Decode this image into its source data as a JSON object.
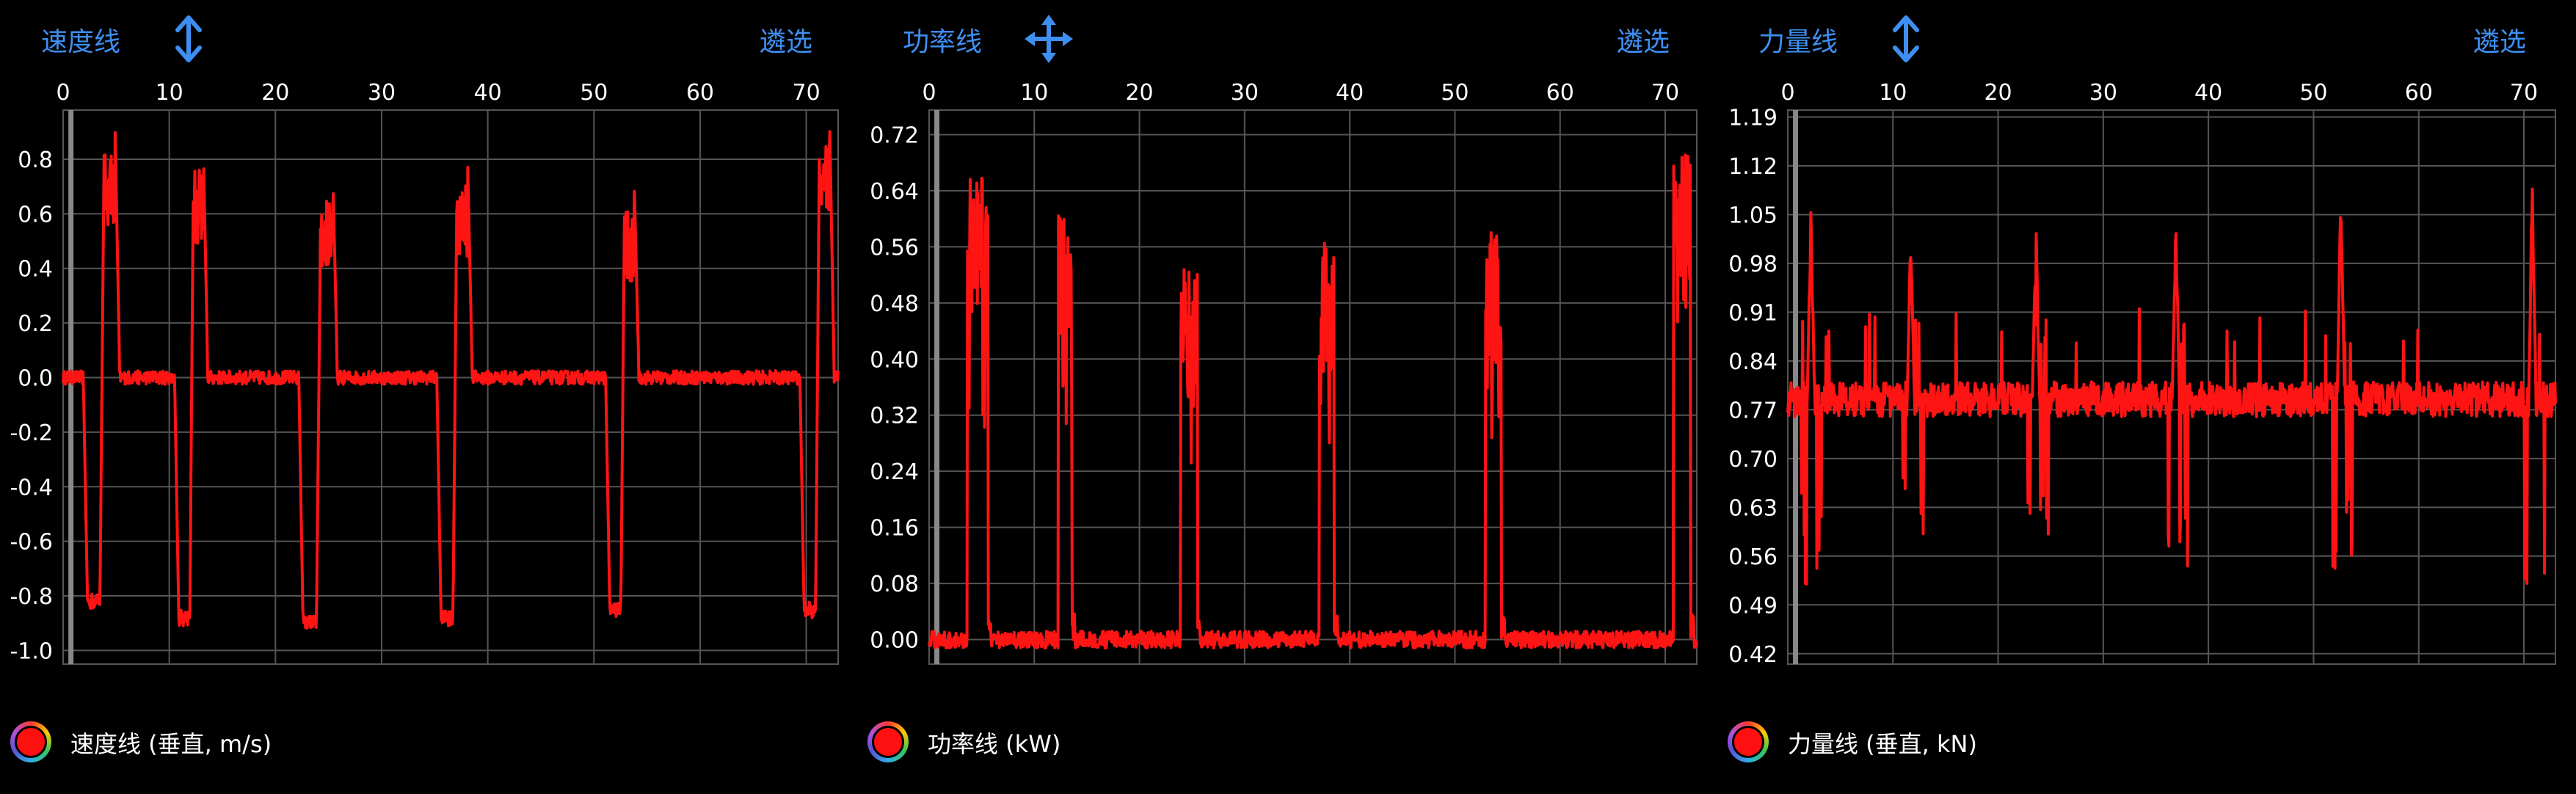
{
  "colors": {
    "accent": "#3d8ff2",
    "series": "#ff1414",
    "grid": "#555555"
  },
  "panels": [
    {
      "title": "速度线",
      "filter": "遴选",
      "icon": "vertical-arrows-icon",
      "legend": "速度线 (垂直, m/s)"
    },
    {
      "title": "功率线",
      "filter": "遴选",
      "icon": "move-arrows-icon",
      "legend": "功率线 (kW)"
    },
    {
      "title": "力量线",
      "filter": "遴选",
      "icon": "vertical-arrows-icon",
      "legend": "力量线 (垂直, kN)"
    }
  ],
  "chart_data": [
    {
      "type": "line",
      "series": [
        {
          "name": "速度线 (垂直, m/s)"
        }
      ],
      "xticks": [
        "0",
        "10",
        "20",
        "30",
        "40",
        "50",
        "60",
        "70"
      ],
      "xlim": [
        0,
        73
      ],
      "yticks": [
        "0.8",
        "0.6",
        "0.4",
        "0.2",
        "0.0",
        "-0.2",
        "-0.4",
        "-0.6",
        "-0.8",
        "-1.0"
      ],
      "ylim": [
        -1.05,
        0.98
      ],
      "baseline": 0.0,
      "noise": 0.025,
      "events": [
        {
          "x": 2.3,
          "w": 2.6,
          "low": -0.82,
          "high": 0.82
        },
        {
          "x": 10.9,
          "w": 2.3,
          "low": -0.88,
          "high": 0.77
        },
        {
          "x": 22.6,
          "w": 2.8,
          "low": -0.9,
          "high": 0.67
        },
        {
          "x": 35.6,
          "w": 2.5,
          "low": -0.88,
          "high": 0.72
        },
        {
          "x": 51.5,
          "w": 2.3,
          "low": -0.85,
          "high": 0.62
        },
        {
          "x": 69.8,
          "w": 2.4,
          "low": -0.85,
          "high": 0.86
        }
      ]
    },
    {
      "type": "line",
      "series": [
        {
          "name": "功率线 (kW)"
        }
      ],
      "xticks": [
        "0",
        "10",
        "20",
        "30",
        "40",
        "50",
        "60",
        "70"
      ],
      "xlim": [
        0,
        73
      ],
      "yticks": [
        "0.72",
        "0.64",
        "0.56",
        "0.48",
        "0.40",
        "0.32",
        "0.24",
        "0.16",
        "0.08",
        "0.00"
      ],
      "ylim": [
        -0.035,
        0.755
      ],
      "baseline": 0.0,
      "noise": 0.012,
      "events": [
        {
          "x": 3.6,
          "w": 2.0,
          "high": 0.66
        },
        {
          "x": 12.3,
          "w": 1.3,
          "high": 0.62
        },
        {
          "x": 23.9,
          "w": 1.6,
          "high": 0.53
        },
        {
          "x": 37.1,
          "w": 1.4,
          "high": 0.58
        },
        {
          "x": 52.9,
          "w": 1.5,
          "high": 0.6
        },
        {
          "x": 70.8,
          "w": 1.6,
          "high": 0.7
        }
      ]
    },
    {
      "type": "line",
      "series": [
        {
          "name": "力量线 (垂直, kN)"
        }
      ],
      "xticks": [
        "0",
        "10",
        "20",
        "30",
        "40",
        "50",
        "60",
        "70"
      ],
      "xlim": [
        0,
        73
      ],
      "yticks": [
        "1.19",
        "1.12",
        "1.05",
        "0.98",
        "0.91",
        "0.84",
        "0.77",
        "0.70",
        "0.63",
        "0.56",
        "0.49",
        "0.42"
      ],
      "ylim": [
        0.405,
        1.2
      ],
      "baseline": 0.785,
      "noise": 0.025,
      "events": [
        {
          "x": 2.2,
          "low": 0.51,
          "high": 1.07
        },
        {
          "x": 11.7,
          "low": 0.53,
          "high": 1.05
        },
        {
          "x": 23.6,
          "low": 0.55,
          "high": 1.05
        },
        {
          "x": 36.9,
          "low": 0.52,
          "high": 1.06
        },
        {
          "x": 52.6,
          "low": 0.53,
          "high": 1.11
        },
        {
          "x": 70.8,
          "low": 0.48,
          "high": 1.12
        }
      ]
    }
  ]
}
